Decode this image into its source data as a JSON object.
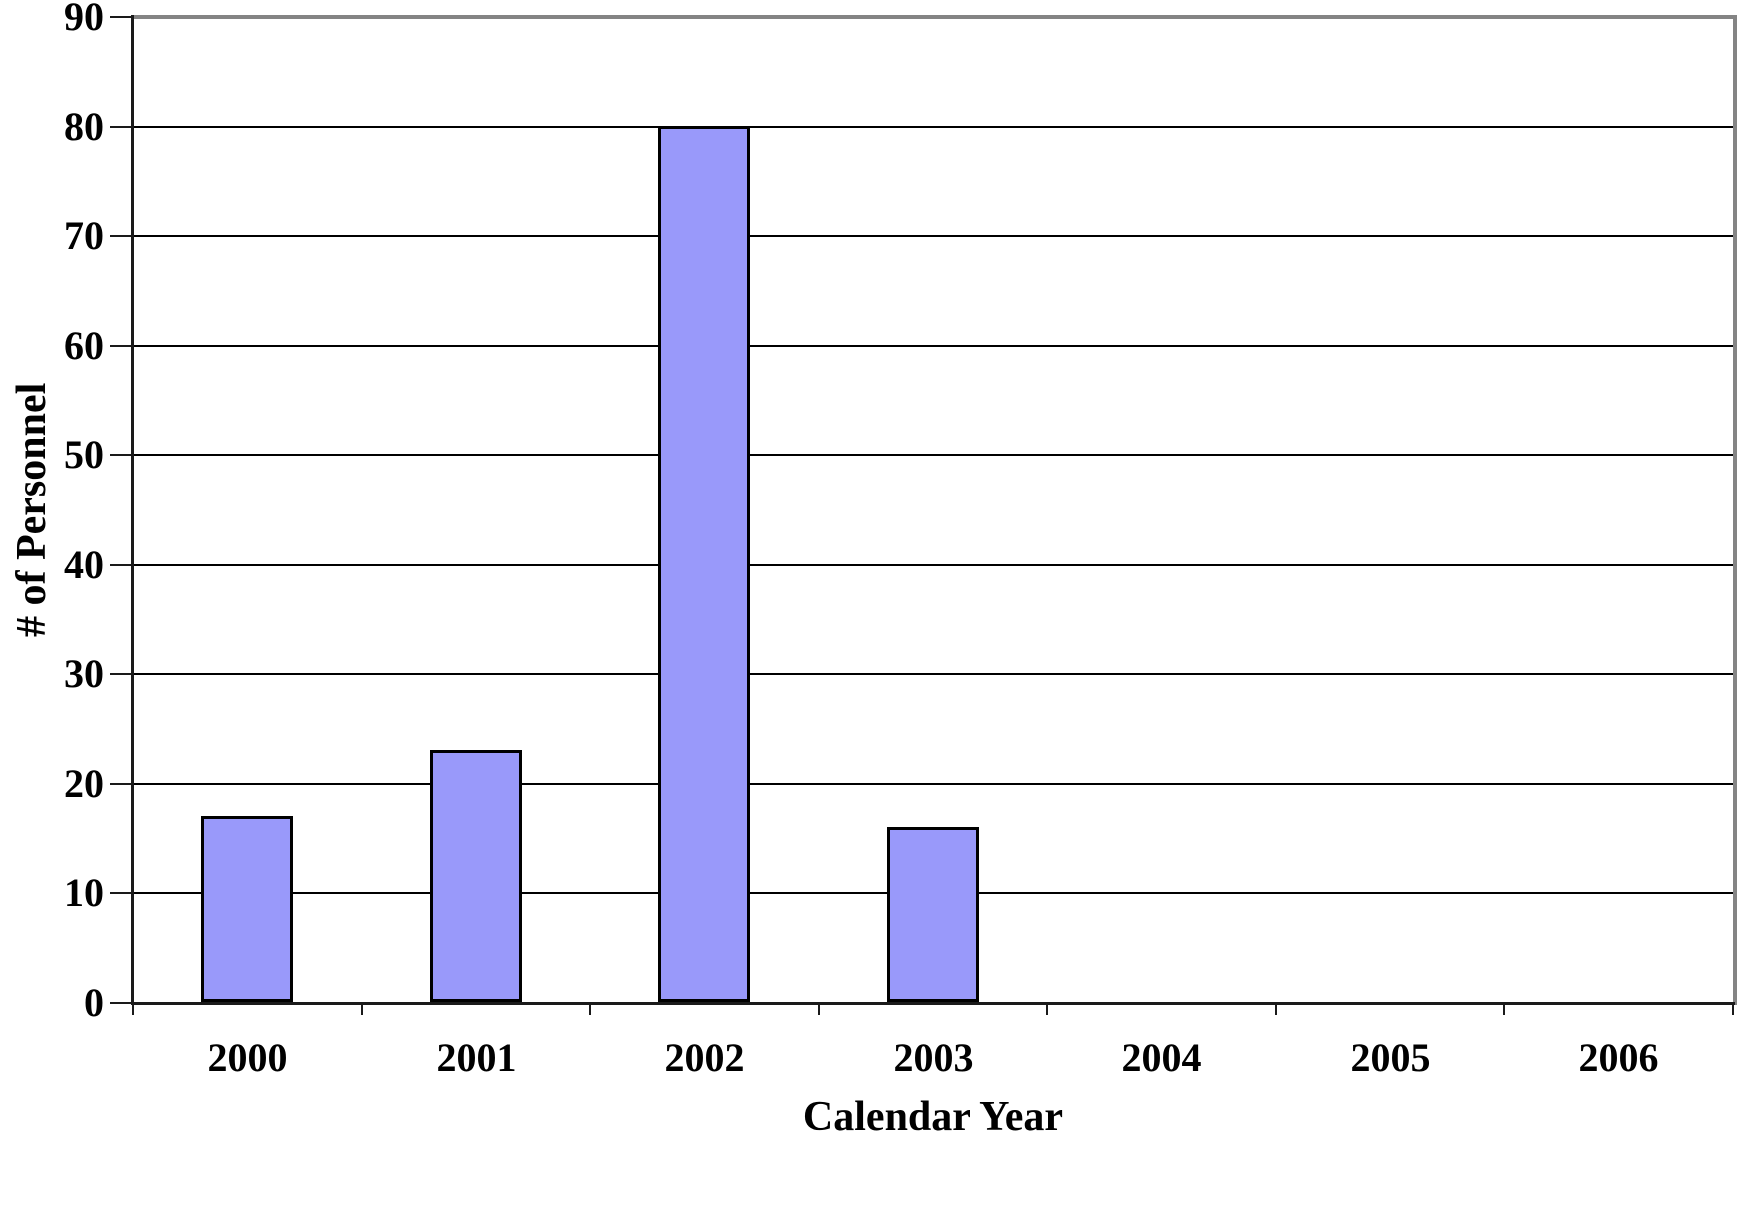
{
  "chart_data": {
    "type": "bar",
    "categories": [
      "2000",
      "2001",
      "2002",
      "2003",
      "2004",
      "2005",
      "2006"
    ],
    "values": [
      17,
      23,
      80,
      16,
      0,
      0,
      0
    ],
    "xlabel": "Calendar Year",
    "ylabel": "# of Personnel",
    "ylim": [
      0,
      90
    ],
    "ytick_step": 10,
    "ytick_labels": [
      "0",
      "10",
      "20",
      "30",
      "40",
      "50",
      "60",
      "70",
      "80",
      "90"
    ],
    "grid": "horizontal",
    "legend": "none",
    "colors": {
      "bar_fill": "#9999FA",
      "bar_border": "#000000",
      "gridline": "#000000",
      "axis_line": "#1a1a1a",
      "plot_border": "#848484",
      "background": "#FFFFFF",
      "text": "#000000"
    }
  }
}
